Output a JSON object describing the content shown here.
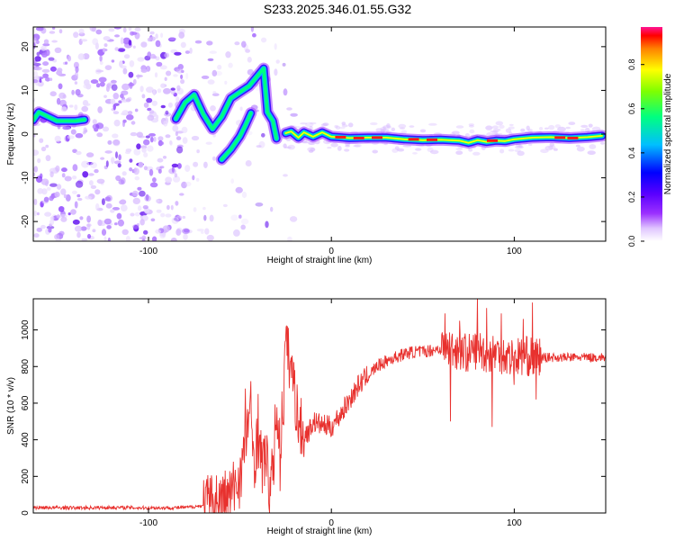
{
  "title": "S233.2025.346.01.55.G32",
  "colors": {
    "axis": "#000000",
    "snr_line": "#e8312e",
    "colormap": [
      "#ffffff",
      "#d9b8ff",
      "#9b30ff",
      "#4b00ff",
      "#0000ff",
      "#00bfff",
      "#00ff7f",
      "#7fff00",
      "#ffff00",
      "#ff8000",
      "#ff0000",
      "#ff1493"
    ]
  },
  "chart_data": [
    {
      "type": "heatmap",
      "title": "S233.2025.346.01.55.G32",
      "xlabel": "Height of straight line (km)",
      "ylabel": "Frequency (Hz)",
      "xlim": [
        -163,
        150
      ],
      "ylim": [
        -24.5,
        24.5
      ],
      "x_ticks": [
        -100,
        0,
        100
      ],
      "y_ticks": [
        -20,
        -10,
        0,
        10,
        20
      ],
      "noise_region_x": [
        -163,
        -80
      ],
      "series": [
        {
          "name": "ridge-main",
          "points": [
            [
              -25,
              0.2
            ],
            [
              -22,
              0.6
            ],
            [
              -18,
              -0.8
            ],
            [
              -15,
              0.4
            ],
            [
              -10,
              -0.6
            ],
            [
              -5,
              0.4
            ],
            [
              0,
              -0.6
            ],
            [
              10,
              -0.9
            ],
            [
              20,
              -0.8
            ],
            [
              30,
              -0.8
            ],
            [
              40,
              -1.2
            ],
            [
              50,
              -1.4
            ],
            [
              60,
              -1.3
            ],
            [
              70,
              -1.5
            ],
            [
              75,
              -2.0
            ],
            [
              80,
              -1.4
            ],
            [
              85,
              -1.8
            ],
            [
              90,
              -1.5
            ],
            [
              95,
              -1.6
            ],
            [
              100,
              -1.2
            ],
            [
              110,
              -0.8
            ],
            [
              120,
              -0.7
            ],
            [
              130,
              -0.9
            ],
            [
              140,
              -0.7
            ],
            [
              148,
              -0.4
            ]
          ]
        },
        {
          "name": "ridge-dispersive",
          "points": [
            [
              -85,
              3.5
            ],
            [
              -80,
              7.2
            ],
            [
              -75,
              9.0
            ],
            [
              -70,
              4.5
            ],
            [
              -65,
              1.2
            ],
            [
              -60,
              4.0
            ],
            [
              -55,
              8.2
            ],
            [
              -50,
              9.6
            ],
            [
              -45,
              11.0
            ],
            [
              -40,
              13.5
            ],
            [
              -37,
              15.0
            ],
            [
              -35,
              5.0
            ],
            [
              -32,
              3.0
            ],
            [
              -30,
              -1.0
            ]
          ]
        },
        {
          "name": "ridge-chirp",
          "points": [
            [
              -60,
              -5.8
            ],
            [
              -55,
              -3.5
            ],
            [
              -50,
              -0.5
            ],
            [
              -47,
              2.0
            ],
            [
              -44,
              4.8
            ]
          ]
        },
        {
          "name": "ridge-low-freq",
          "points": [
            [
              -163,
              3.2
            ],
            [
              -160,
              5.0
            ],
            [
              -150,
              3.0
            ],
            [
              -140,
              3.0
            ],
            [
              -135,
              3.3
            ]
          ]
        }
      ],
      "colorbar": {
        "label": "Normalized spectral amplitude",
        "range": [
          0,
          0.97
        ],
        "ticks": [
          0.0,
          0.2,
          0.4,
          0.6,
          0.8
        ]
      }
    },
    {
      "type": "line",
      "xlabel": "Height of straight line (km)",
      "ylabel": "SNR (10 * v/v)",
      "xlim": [
        -163,
        150
      ],
      "ylim": [
        0,
        1170
      ],
      "x_ticks": [
        -100,
        0,
        100
      ],
      "y_ticks": [
        0,
        200,
        400,
        600,
        800,
        1000
      ],
      "series": [
        {
          "name": "SNR",
          "x": [
            -163,
            -140,
            -120,
            -100,
            -90,
            -80,
            -70,
            -65,
            -60,
            -55,
            -50,
            -47,
            -45,
            -42,
            -40,
            -38,
            -36,
            -34,
            -32,
            -30,
            -28,
            -26,
            -25,
            -22,
            -20,
            -18,
            -15,
            -12,
            -10,
            -5,
            0,
            5,
            10,
            15,
            20,
            25,
            30,
            35,
            40,
            45,
            50,
            55,
            60,
            65,
            70,
            75,
            80,
            85,
            90,
            95,
            100,
            105,
            110,
            115,
            120,
            130,
            140,
            150
          ],
          "y": [
            30,
            28,
            30,
            28,
            28,
            30,
            40,
            60,
            70,
            100,
            200,
            380,
            560,
            300,
            420,
            250,
            330,
            140,
            200,
            580,
            350,
            700,
            900,
            800,
            650,
            500,
            420,
            450,
            500,
            480,
            470,
            540,
            620,
            700,
            750,
            800,
            830,
            850,
            870,
            880,
            880,
            890,
            900,
            900,
            890,
            870,
            900,
            870,
            880,
            860,
            850,
            860,
            850,
            850,
            850,
            850,
            850,
            850
          ]
        }
      ],
      "spikes": [
        [
          -47,
          680
        ],
        [
          -44,
          720
        ],
        [
          -40,
          650
        ],
        [
          -28,
          120
        ],
        [
          -26,
          480
        ],
        [
          -25,
          940
        ],
        [
          -24,
          1020
        ],
        [
          -22,
          850
        ],
        [
          -20,
          780
        ],
        [
          -16,
          420
        ],
        [
          62,
          1090
        ],
        [
          65,
          500
        ],
        [
          70,
          1050
        ],
        [
          80,
          1180
        ],
        [
          85,
          1120
        ],
        [
          88,
          470
        ],
        [
          93,
          1090
        ],
        [
          100,
          700
        ],
        [
          105,
          1060
        ],
        [
          110,
          1150
        ],
        [
          112,
          620
        ]
      ]
    }
  ]
}
